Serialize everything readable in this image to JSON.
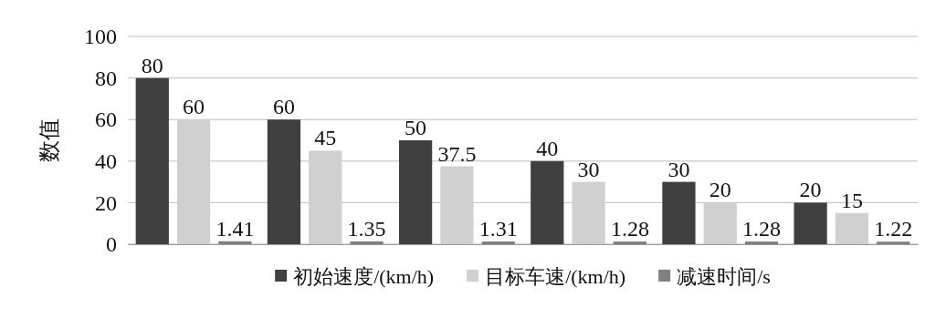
{
  "chart_data": {
    "type": "bar",
    "ylabel": "数值",
    "categories": [
      null,
      null,
      null,
      null,
      null,
      null
    ],
    "series": [
      {
        "name": "初始速度/(km/h)",
        "color": "#404040",
        "values": [
          80,
          60,
          50,
          40,
          30,
          20
        ]
      },
      {
        "name": "目标车速/(km/h)",
        "color": "#d0d0d0",
        "values": [
          60,
          45,
          37.5,
          30,
          20,
          15
        ]
      },
      {
        "name": "减速时间/s",
        "color": "#808080",
        "values": [
          1.41,
          1.35,
          1.31,
          1.28,
          1.28,
          1.22
        ]
      }
    ],
    "ylim": [
      0,
      100
    ],
    "yticks": [
      0,
      20,
      40,
      60,
      80,
      100
    ],
    "grid": "y",
    "legend": "bottom",
    "data_labels": true
  }
}
